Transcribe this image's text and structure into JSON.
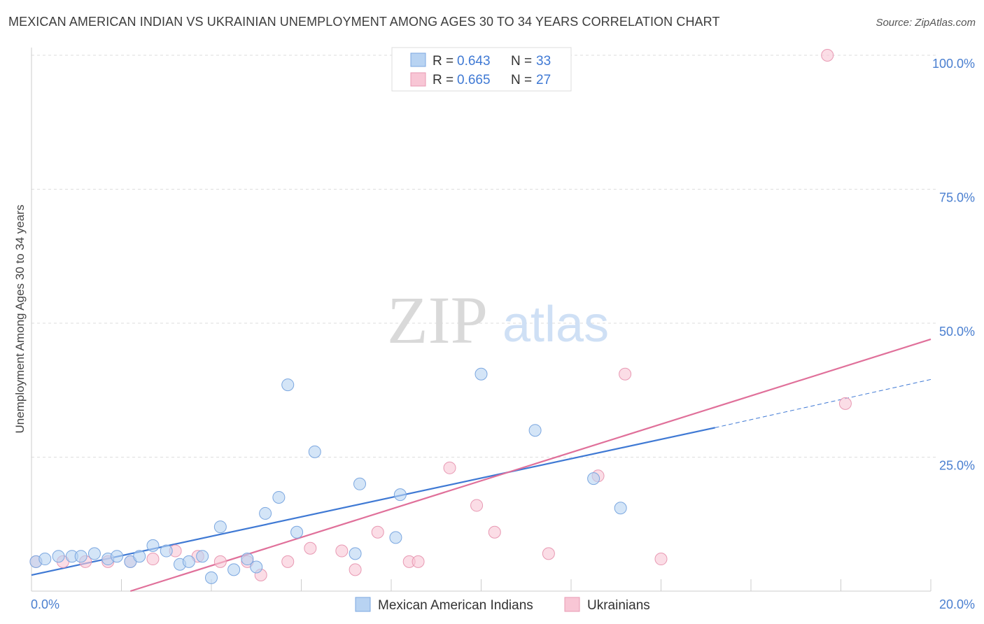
{
  "header": {
    "title": "MEXICAN AMERICAN INDIAN VS UKRAINIAN UNEMPLOYMENT AMONG AGES 30 TO 34 YEARS CORRELATION CHART",
    "source": "Source: ZipAtlas.com"
  },
  "watermark": {
    "zip": "ZIP",
    "atlas": "atlas"
  },
  "legend": {
    "r_label": "R =",
    "n_label": "N =",
    "entries": [
      {
        "r": "0.643",
        "n": "33"
      },
      {
        "r": "0.665",
        "n": "27"
      }
    ]
  },
  "colors": {
    "blue_fill": "#b8d3f2",
    "blue_stroke": "#7ba7e0",
    "blue_line": "#3f79d4",
    "pink_fill": "#f8c6d5",
    "pink_stroke": "#e899b3",
    "pink_line": "#e0709a",
    "grid": "#dddddd",
    "axis_text": "#4a7fd0"
  },
  "chart_data": {
    "type": "scatter",
    "title": "MEXICAN AMERICAN INDIAN VS UKRAINIAN UNEMPLOYMENT AMONG AGES 30 TO 34 YEARS CORRELATION CHART",
    "xlabel": "",
    "ylabel": "Unemployment Among Ages 30 to 34 years",
    "xlim": [
      0,
      20
    ],
    "ylim": [
      0,
      100
    ],
    "x_tick_labels": [
      "0.0%",
      "20.0%"
    ],
    "y_ticks": [
      25,
      50,
      75,
      100
    ],
    "y_tick_labels": [
      "25.0%",
      "50.0%",
      "75.0%",
      "100.0%"
    ],
    "legend_position": "top-center",
    "series": [
      {
        "name": "Mexican American Indians",
        "points": [
          [
            0.1,
            5.5
          ],
          [
            0.3,
            6.0
          ],
          [
            0.6,
            6.5
          ],
          [
            0.9,
            6.5
          ],
          [
            1.1,
            6.5
          ],
          [
            1.4,
            7.0
          ],
          [
            1.7,
            6.0
          ],
          [
            1.9,
            6.5
          ],
          [
            2.2,
            5.5
          ],
          [
            2.4,
            6.5
          ],
          [
            2.7,
            8.5
          ],
          [
            3.0,
            7.5
          ],
          [
            3.3,
            5.0
          ],
          [
            3.5,
            5.5
          ],
          [
            3.8,
            6.5
          ],
          [
            4.0,
            2.5
          ],
          [
            4.2,
            12.0
          ],
          [
            4.5,
            4.0
          ],
          [
            4.8,
            6.0
          ],
          [
            5.0,
            4.5
          ],
          [
            5.2,
            14.5
          ],
          [
            5.5,
            17.5
          ],
          [
            5.7,
            38.5
          ],
          [
            5.9,
            11.0
          ],
          [
            6.3,
            26.0
          ],
          [
            7.2,
            7.0
          ],
          [
            7.3,
            20.0
          ],
          [
            8.1,
            10.0
          ],
          [
            8.2,
            18.0
          ],
          [
            10.0,
            40.5
          ],
          [
            11.2,
            30.0
          ],
          [
            12.5,
            21.0
          ],
          [
            13.1,
            15.5
          ]
        ],
        "trend": {
          "x0": 0,
          "y0": 3.0,
          "x1": 15.2,
          "y1": 30.5,
          "dashed_to_x": 20,
          "dashed_to_y": 39.5
        }
      },
      {
        "name": "Ukrainians",
        "points": [
          [
            0.1,
            5.5
          ],
          [
            0.7,
            5.5
          ],
          [
            1.2,
            5.5
          ],
          [
            1.7,
            5.5
          ],
          [
            2.2,
            5.5
          ],
          [
            2.7,
            6.0
          ],
          [
            3.2,
            7.5
          ],
          [
            3.7,
            6.5
          ],
          [
            4.2,
            5.5
          ],
          [
            4.8,
            5.5
          ],
          [
            5.1,
            3.0
          ],
          [
            5.7,
            5.5
          ],
          [
            6.2,
            8.0
          ],
          [
            6.9,
            7.5
          ],
          [
            7.2,
            4.0
          ],
          [
            7.7,
            11.0
          ],
          [
            8.4,
            5.5
          ],
          [
            8.6,
            5.5
          ],
          [
            9.3,
            23.0
          ],
          [
            9.9,
            16.0
          ],
          [
            10.3,
            11.0
          ],
          [
            11.5,
            7.0
          ],
          [
            12.6,
            21.5
          ],
          [
            13.2,
            40.5
          ],
          [
            14.0,
            6.0
          ],
          [
            17.7,
            100.0
          ],
          [
            18.1,
            35.0
          ]
        ],
        "trend": {
          "x0": 2.2,
          "y0": 0.0,
          "x1": 20,
          "y1": 47.0
        }
      }
    ]
  }
}
